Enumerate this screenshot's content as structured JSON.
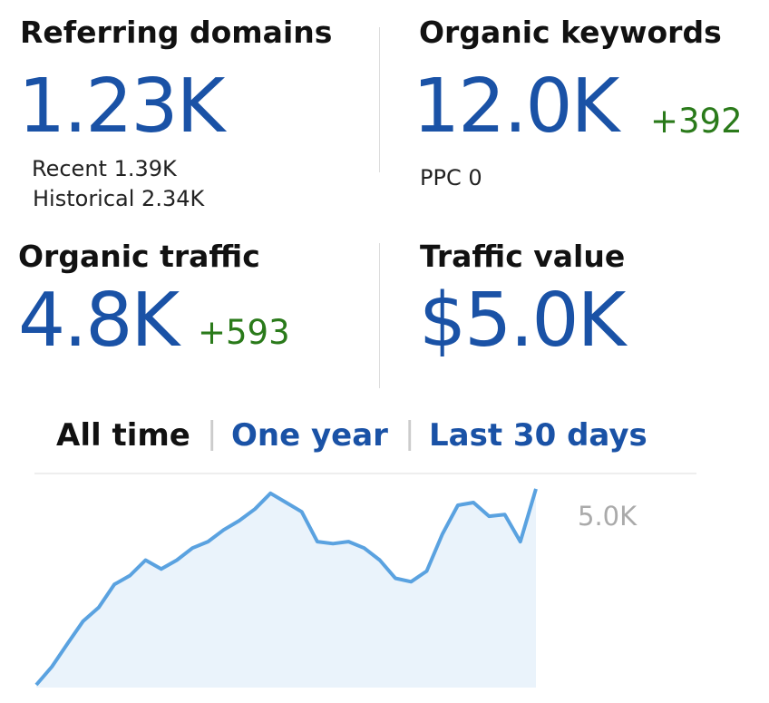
{
  "metrics": [
    {
      "label": "Referring domains",
      "value": "1.23K",
      "details": [
        "Recent 1.39K",
        "Historical 2.34K"
      ]
    },
    {
      "label": "Organic keywords",
      "value": "12.0K",
      "change": "+392",
      "details": [
        "PPC 0"
      ]
    },
    {
      "label": "Organic traffic",
      "value": "4.8K",
      "change": "+593"
    },
    {
      "label": "Traffic value",
      "value": "$5.0K"
    }
  ],
  "tabs": [
    "All time",
    "One year",
    "Last 30 days"
  ],
  "chart_data": {
    "type": "area",
    "color": "#5aa2e0",
    "values": [
      80,
      610,
      1280,
      1940,
      2340,
      3010,
      3270,
      3720,
      3460,
      3720,
      4070,
      4260,
      4600,
      4870,
      5210,
      5670,
      5400,
      5130,
      4260,
      4200,
      4260,
      4070,
      3720,
      3190,
      3090,
      3400,
      4470,
      5320,
      5400,
      5000,
      5050,
      4260,
      5800
    ],
    "ylim": [
      0,
      6300
    ],
    "yticks": [
      {
        "value": 5000,
        "label": "5.0K"
      }
    ]
  }
}
